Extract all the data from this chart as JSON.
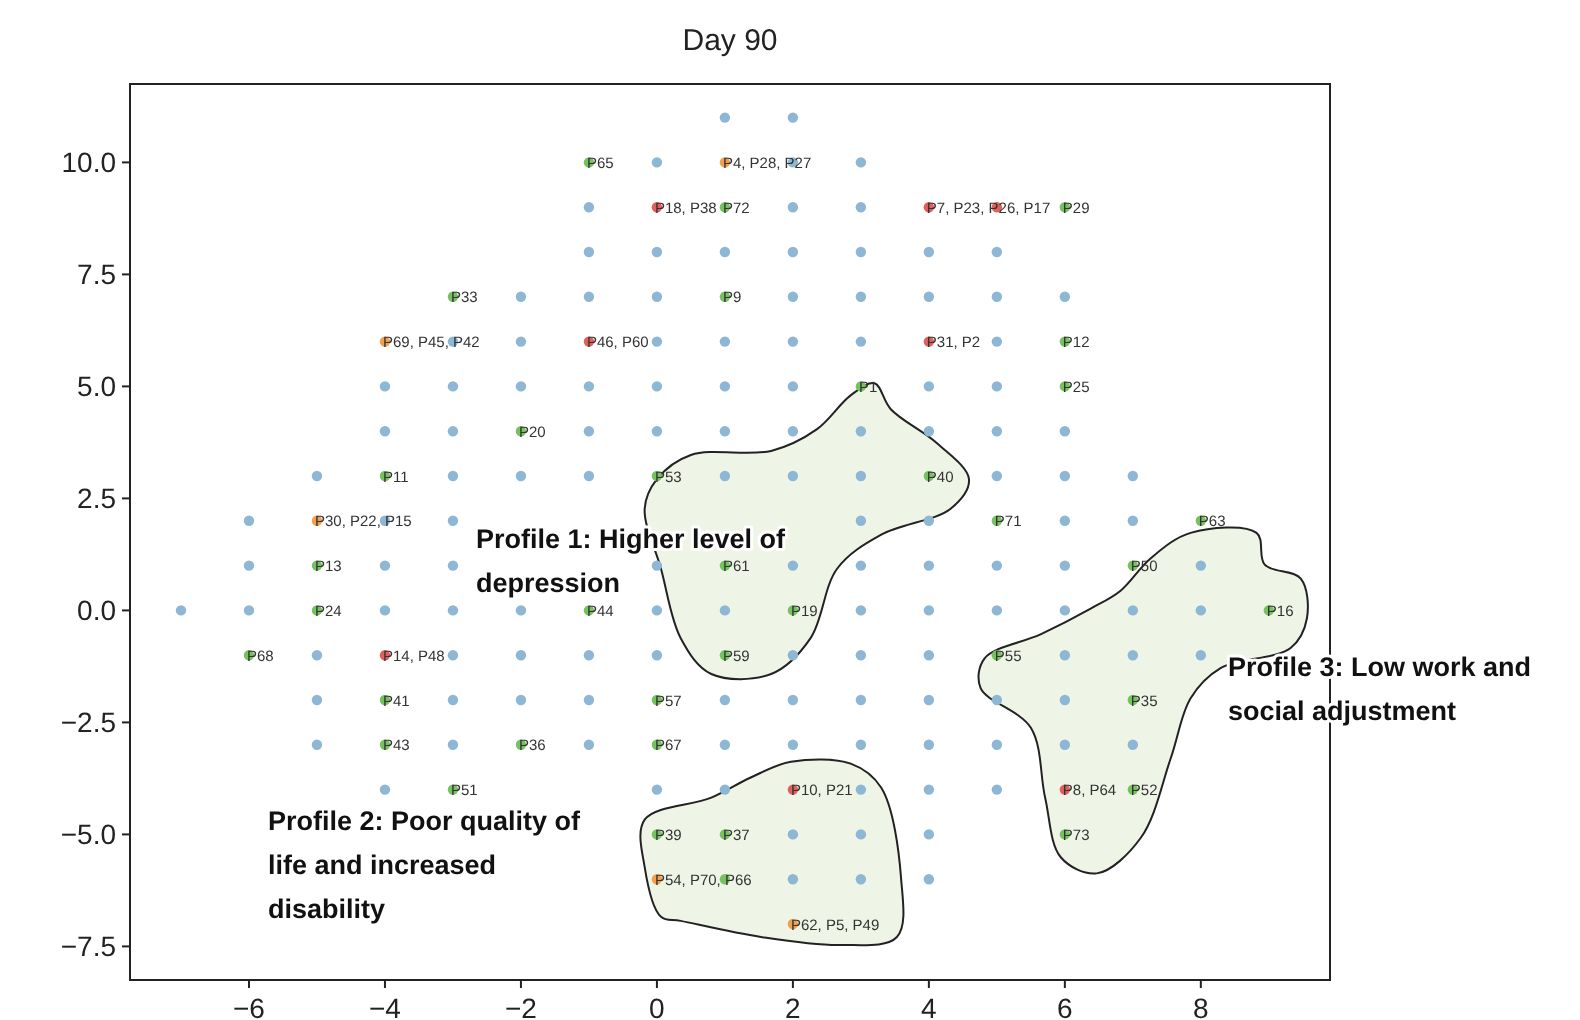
{
  "chart_data": {
    "type": "scatter",
    "title": "Day 90",
    "marker": "circle",
    "grid": false,
    "xlim": [
      -7.75,
      9.9
    ],
    "ylim": [
      -8.25,
      11.75
    ],
    "xticks": [
      {
        "value": -6,
        "label": "−6"
      },
      {
        "value": -4,
        "label": "−4"
      },
      {
        "value": -2,
        "label": "−2"
      },
      0,
      2,
      4,
      6,
      8
    ],
    "yticks": [
      {
        "value": -7.5,
        "label": "−7.5"
      },
      {
        "value": -5,
        "label": "−5.0"
      },
      {
        "value": -2.5,
        "label": "−2.5"
      },
      {
        "value": 0,
        "label": "0.0"
      },
      2.5,
      {
        "value": 5,
        "label": "5.0"
      },
      7.5,
      {
        "value": 10,
        "label": "10.0"
      }
    ],
    "series": [
      {
        "color": "#8db7d4",
        "x": [
          1,
          2,
          0,
          2,
          3,
          -1,
          2,
          3,
          -1,
          0,
          1,
          2,
          3,
          4,
          5,
          -2,
          -1,
          0,
          2,
          3,
          4,
          5,
          6,
          -3,
          -2,
          0,
          1,
          2,
          3,
          5,
          -4,
          -3,
          -2,
          -1,
          0,
          1,
          2,
          4,
          5,
          -4,
          -3,
          -1,
          0,
          1,
          2,
          3,
          4,
          5,
          6,
          -5,
          -3,
          -2,
          -1,
          1,
          2,
          3,
          5,
          6,
          7,
          -6,
          -4,
          -3,
          3,
          4,
          6,
          7,
          -6,
          -4,
          -3,
          0,
          2,
          3,
          4,
          5,
          6,
          8,
          -7,
          -6,
          -4,
          -3,
          -2,
          0,
          1,
          3,
          4,
          5,
          6,
          7,
          8,
          -5,
          -3,
          -2,
          -1,
          0,
          2,
          3,
          4,
          6,
          7,
          8,
          -5,
          -3,
          -2,
          -1,
          1,
          2,
          3,
          4,
          5,
          6,
          -5,
          -3,
          -1,
          1,
          2,
          3,
          4,
          5,
          6,
          7,
          -4,
          0,
          1,
          3,
          4,
          5,
          2,
          3,
          4,
          2,
          3,
          4
        ],
        "values": [
          11,
          11,
          10,
          10,
          10,
          9,
          9,
          9,
          8,
          8,
          8,
          8,
          8,
          8,
          8,
          7,
          7,
          7,
          7,
          7,
          7,
          7,
          7,
          6,
          6,
          6,
          6,
          6,
          6,
          6,
          5,
          5,
          5,
          5,
          5,
          5,
          5,
          5,
          5,
          4,
          4,
          4,
          4,
          4,
          4,
          4,
          4,
          4,
          4,
          3,
          3,
          3,
          3,
          3,
          3,
          3,
          3,
          3,
          3,
          2,
          2,
          2,
          2,
          2,
          2,
          2,
          1,
          1,
          1,
          1,
          1,
          1,
          1,
          1,
          1,
          1,
          0,
          0,
          0,
          0,
          0,
          0,
          0,
          0,
          0,
          0,
          0,
          0,
          0,
          -1,
          -1,
          -1,
          -1,
          -1,
          -1,
          -1,
          -1,
          -1,
          -1,
          -1,
          -2,
          -2,
          -2,
          -2,
          -2,
          -2,
          -2,
          -2,
          -2,
          -2,
          -3,
          -3,
          -3,
          -3,
          -3,
          -3,
          -3,
          -3,
          -3,
          -3,
          -4,
          -4,
          -4,
          -4,
          -4,
          -4,
          -5,
          -5,
          -5,
          -6,
          -6,
          -6
        ]
      },
      {
        "color": "#76c260",
        "x": [
          -1,
          1,
          6,
          -3,
          1,
          6,
          3,
          6,
          -2,
          -4,
          0,
          4,
          5,
          8,
          -5,
          1,
          7,
          -5,
          -1,
          2,
          9,
          -6,
          1,
          5,
          -4,
          0,
          7,
          -4,
          -2,
          0,
          -3,
          7,
          0,
          1,
          6,
          1
        ],
        "values": [
          10,
          9,
          9,
          7,
          7,
          6,
          5,
          5,
          4,
          3,
          3,
          3,
          2,
          2,
          1,
          1,
          1,
          0,
          0,
          0,
          0,
          -1,
          -1,
          -1,
          -2,
          -2,
          -2,
          -3,
          -3,
          -3,
          -4,
          -4,
          -5,
          -5,
          -5,
          -6
        ]
      },
      {
        "color": "#f2a04e",
        "x": [
          1,
          -4,
          -5,
          0,
          2
        ],
        "values": [
          10,
          6,
          2,
          -6,
          -7
        ]
      },
      {
        "color": "#e0605c",
        "x": [
          0,
          4,
          5,
          -1,
          4,
          -4,
          2,
          6
        ],
        "values": [
          9,
          9,
          9,
          6,
          6,
          -1,
          -4,
          -4
        ]
      }
    ],
    "annotations": [
      {
        "text": "P65",
        "x": -1,
        "y": 10
      },
      {
        "text": "P4, P28, P27",
        "x": 1,
        "y": 10
      },
      {
        "text": "P18, P38",
        "x": 0,
        "y": 9
      },
      {
        "text": "P72",
        "x": 1,
        "y": 9
      },
      {
        "text": "P7, P23, P26, P17",
        "x": 4,
        "y": 9
      },
      {
        "text": "P29",
        "x": 6,
        "y": 9
      },
      {
        "text": "P33",
        "x": -3,
        "y": 7
      },
      {
        "text": "P9",
        "x": 1,
        "y": 7
      },
      {
        "text": "P69, P45, P42",
        "x": -4,
        "y": 6
      },
      {
        "text": "P46, P60",
        "x": -1,
        "y": 6
      },
      {
        "text": "P31, P2",
        "x": 4,
        "y": 6
      },
      {
        "text": "P12",
        "x": 6,
        "y": 6
      },
      {
        "text": "P1",
        "x": 3,
        "y": 5
      },
      {
        "text": "P25",
        "x": 6,
        "y": 5
      },
      {
        "text": "P20",
        "x": -2,
        "y": 4
      },
      {
        "text": "P11",
        "x": -4,
        "y": 3
      },
      {
        "text": "P53",
        "x": 0,
        "y": 3
      },
      {
        "text": "P40",
        "x": 4,
        "y": 3
      },
      {
        "text": "P30, P22, P15",
        "x": -5,
        "y": 2
      },
      {
        "text": "P71",
        "x": 5,
        "y": 2
      },
      {
        "text": "P63",
        "x": 8,
        "y": 2
      },
      {
        "text": "P13",
        "x": -5,
        "y": 1
      },
      {
        "text": "P61",
        "x": 1,
        "y": 1
      },
      {
        "text": "P50",
        "x": 7,
        "y": 1
      },
      {
        "text": "P24",
        "x": -5,
        "y": 0
      },
      {
        "text": "P44",
        "x": -1,
        "y": 0
      },
      {
        "text": "P19",
        "x": 2,
        "y": 0
      },
      {
        "text": "P16",
        "x": 9,
        "y": 0
      },
      {
        "text": "P68",
        "x": -6,
        "y": -1
      },
      {
        "text": "P14, P48",
        "x": -4,
        "y": -1
      },
      {
        "text": "P59",
        "x": 1,
        "y": -1
      },
      {
        "text": "P55",
        "x": 5,
        "y": -1
      },
      {
        "text": "P41",
        "x": -4,
        "y": -2
      },
      {
        "text": "P57",
        "x": 0,
        "y": -2
      },
      {
        "text": "P35",
        "x": 7,
        "y": -2
      },
      {
        "text": "P43",
        "x": -4,
        "y": -3
      },
      {
        "text": "P36",
        "x": -2,
        "y": -3
      },
      {
        "text": "P67",
        "x": 0,
        "y": -3
      },
      {
        "text": "P51",
        "x": -3,
        "y": -4
      },
      {
        "text": "P10, P21",
        "x": 2,
        "y": -4
      },
      {
        "text": "P8, P64",
        "x": 6,
        "y": -4
      },
      {
        "text": "P52",
        "x": 7,
        "y": -4
      },
      {
        "text": "P39",
        "x": 0,
        "y": -5
      },
      {
        "text": "P37",
        "x": 1,
        "y": -5
      },
      {
        "text": "P73",
        "x": 6,
        "y": -5
      },
      {
        "text": "P54, P70, P66",
        "x": 0,
        "y": -6
      },
      {
        "text": "P62, P5, P49",
        "x": 2,
        "y": -7
      },
      "Profile 1: Higher level of depression",
      "Profile 2: Poor quality of life and increased disability",
      "Profile 3: Low work and social adjustment"
    ]
  }
}
